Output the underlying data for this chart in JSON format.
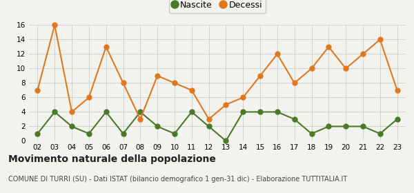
{
  "years": [
    "02",
    "03",
    "04",
    "05",
    "06",
    "07",
    "08",
    "09",
    "10",
    "11",
    "12",
    "13",
    "14",
    "15",
    "16",
    "17",
    "18",
    "19",
    "20",
    "21",
    "22",
    "23"
  ],
  "nascite": [
    1,
    4,
    2,
    1,
    4,
    1,
    4,
    2,
    1,
    4,
    2,
    0,
    4,
    4,
    4,
    3,
    1,
    2,
    2,
    2,
    1,
    3
  ],
  "decessi": [
    7,
    16,
    4,
    6,
    13,
    8,
    3,
    9,
    8,
    7,
    3,
    5,
    6,
    9,
    12,
    8,
    10,
    13,
    10,
    12,
    14,
    7
  ],
  "nascite_color": "#4a7a28",
  "decessi_color": "#e07820",
  "background_color": "#f2f2ee",
  "grid_color": "#cccccc",
  "ylim": [
    0,
    16
  ],
  "yticks": [
    0,
    2,
    4,
    6,
    8,
    10,
    12,
    14,
    16
  ],
  "title": "Movimento naturale della popolazione",
  "subtitle": "COMUNE DI TURRI (SU) - Dati ISTAT (bilancio demografico 1 gen-31 dic) - Elaborazione TUTTITALIA.IT",
  "legend_labels": [
    "Nascite",
    "Decessi"
  ],
  "title_fontsize": 10,
  "subtitle_fontsize": 7,
  "marker_size": 5,
  "linewidth": 1.5
}
